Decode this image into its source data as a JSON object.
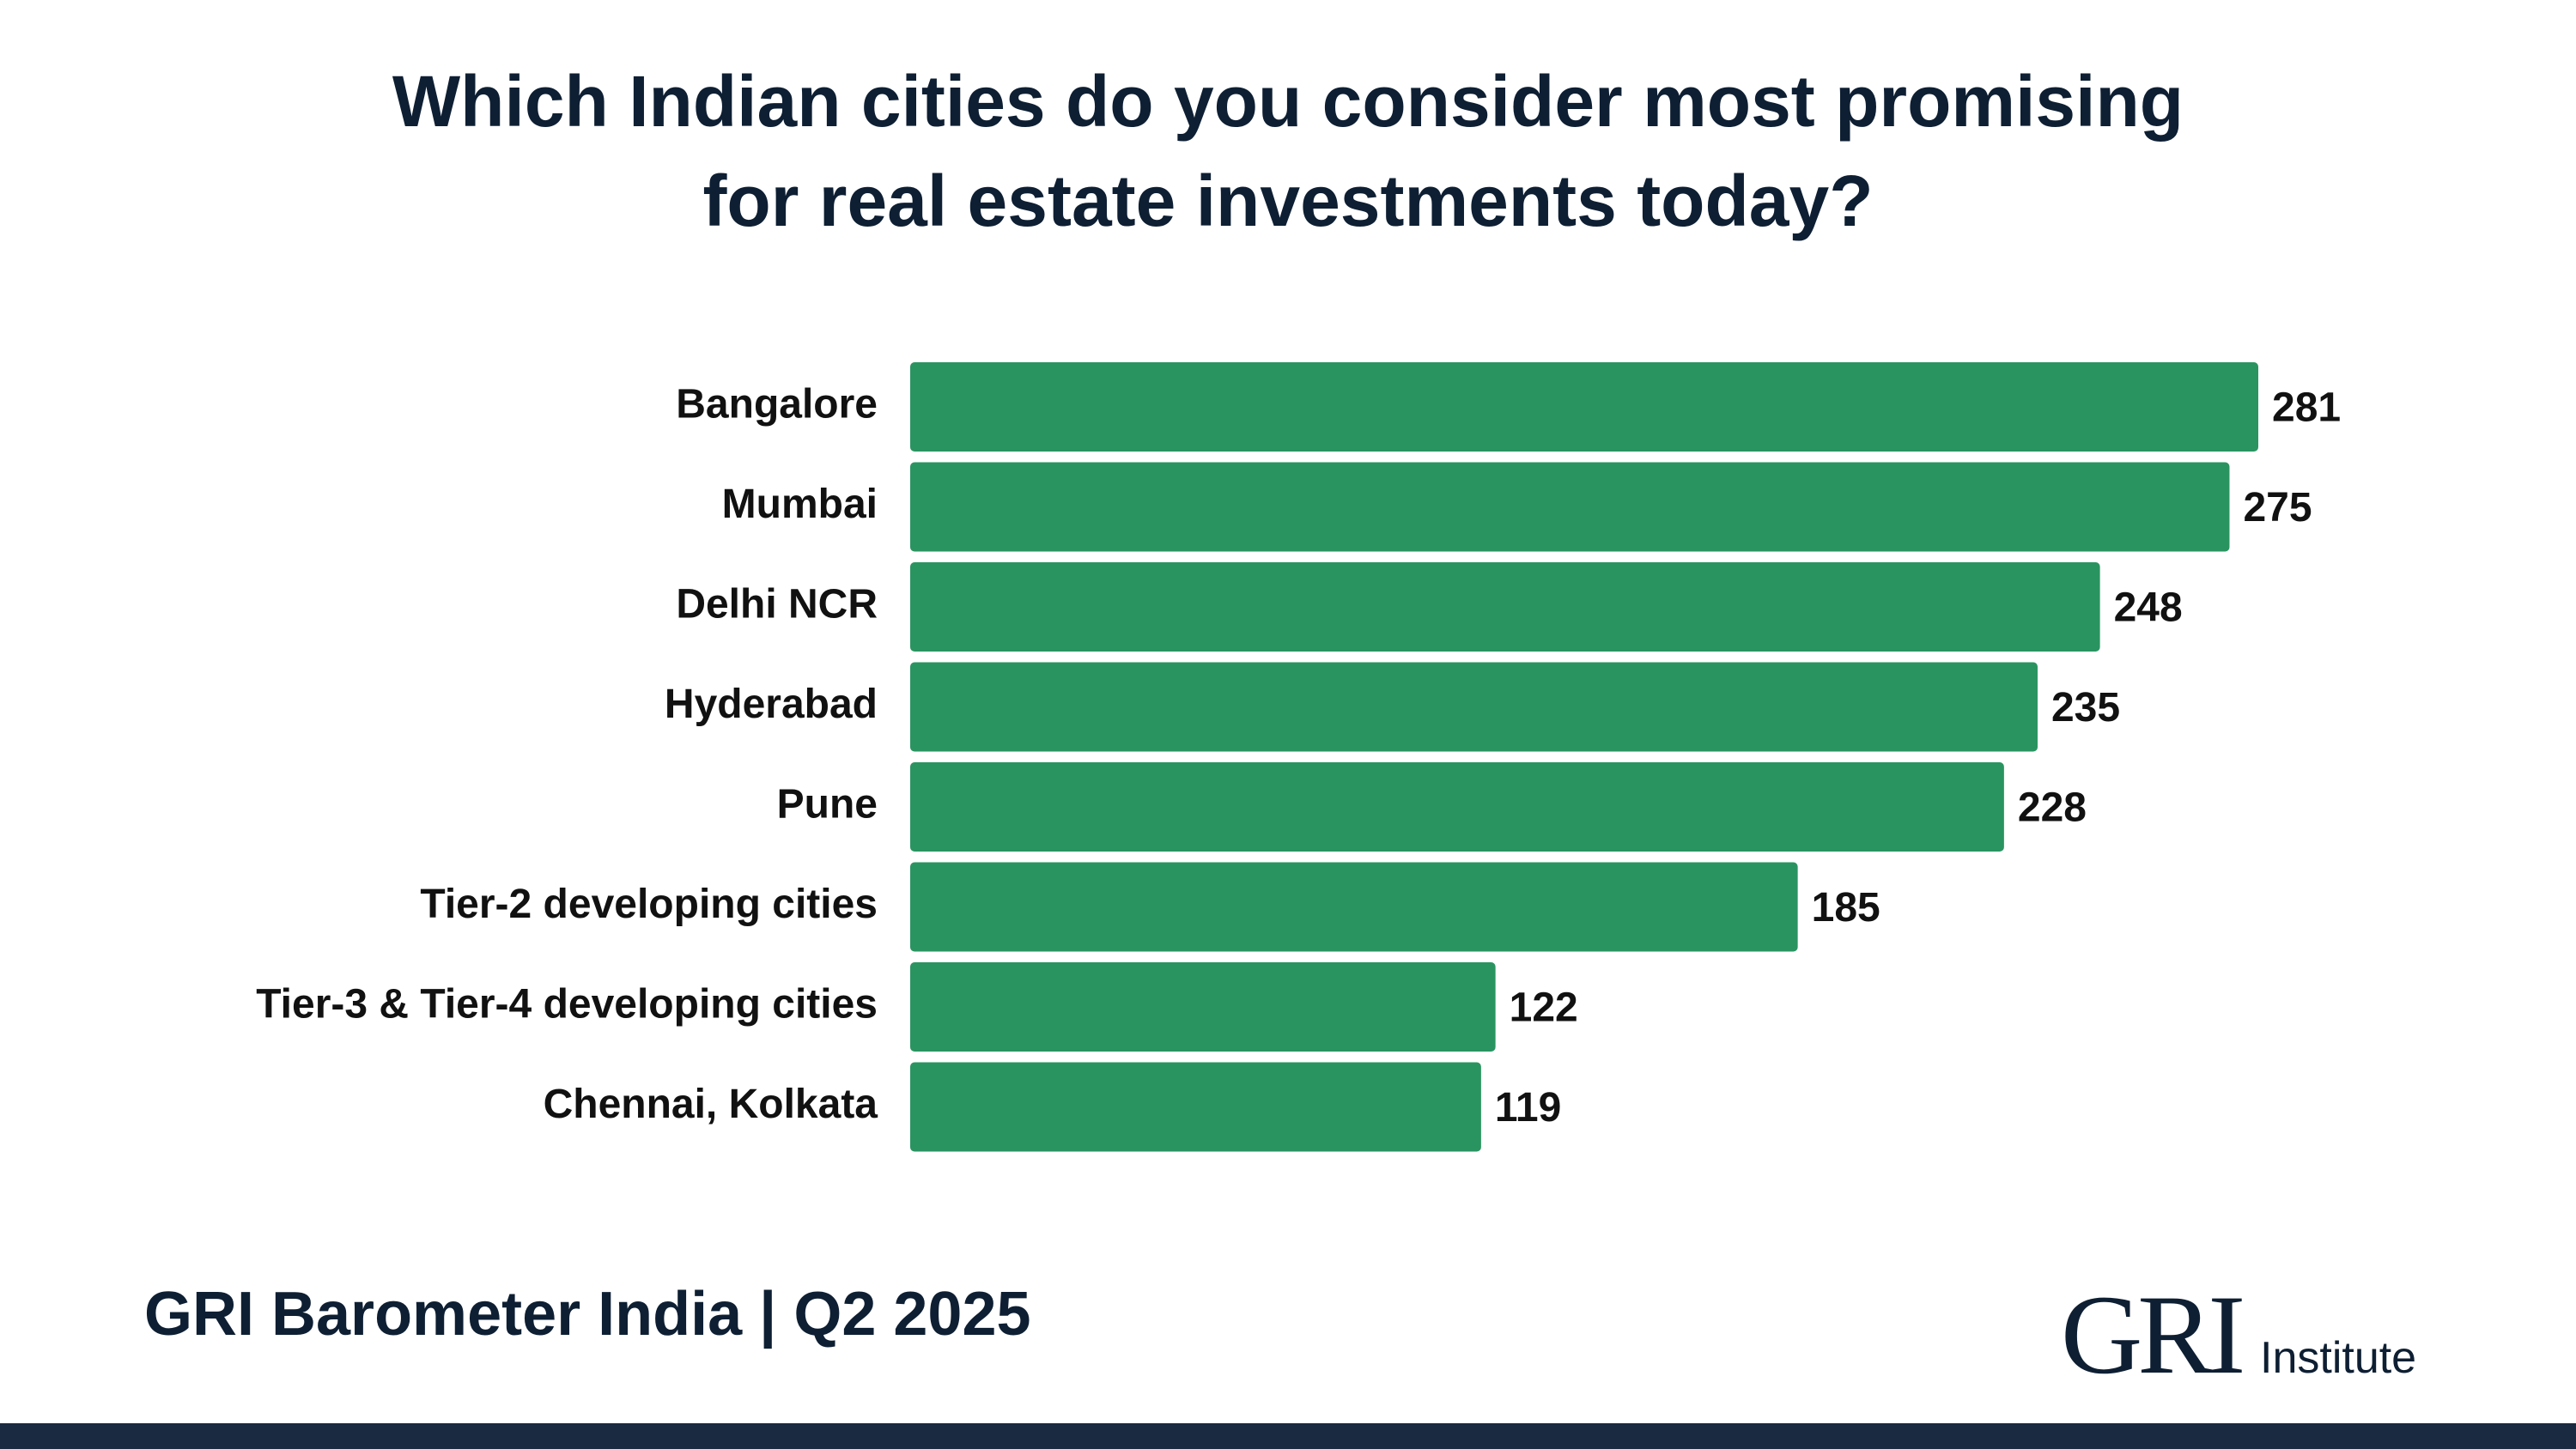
{
  "chart_data": {
    "type": "bar",
    "orientation": "horizontal",
    "title_lines": [
      "Which Indian cities do you consider most promising",
      "for real estate investments today?"
    ],
    "categories": [
      "Bangalore",
      "Mumbai",
      "Delhi NCR",
      "Hyderabad",
      "Pune",
      "Tier-2 developing cities",
      "Tier-3 & Tier-4 developing cities",
      "Chennai, Kolkata"
    ],
    "values": [
      281,
      275,
      248,
      235,
      228,
      185,
      122,
      119
    ],
    "xlim": [
      0,
      281
    ],
    "bar_color": "#2a9461",
    "grid": false,
    "legend": "none",
    "data_labels": true
  },
  "footer": {
    "source": "GRI Barometer India | Q2 2025"
  },
  "logo": {
    "mark": "GRI",
    "sub": "Institute"
  },
  "colors": {
    "title": "#0e1f33",
    "bottom_bar": "#1a2a40"
  }
}
